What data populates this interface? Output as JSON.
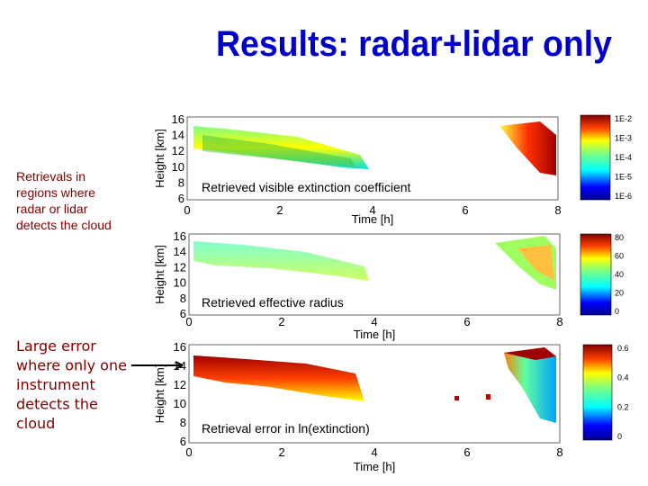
{
  "title": "Results: radar+lidar only",
  "notes": [
    {
      "lines": [
        "Retrievals in",
        "regions where",
        "radar or lidar",
        "detects the cloud"
      ]
    },
    {
      "lines": [
        "Large error",
        "where only one",
        "instrument",
        "detects the",
        "cloud"
      ]
    }
  ],
  "panels": [
    {
      "caption": "Retrieved visible extinction coefficient",
      "ylabel": "Height [km]",
      "xlabel": "Time [h]",
      "yticks": [
        "16",
        "14",
        "12",
        "10",
        "8",
        "6"
      ],
      "xticks": [
        "0",
        "2",
        "4",
        "6",
        "8"
      ],
      "colorbar_ticks": [
        "1E-2",
        "1E-3",
        "1E-4",
        "1E-5",
        "1E-6"
      ]
    },
    {
      "caption": "Retrieved effective radius",
      "ylabel": "Height [km]",
      "xlabel": "Time [h]",
      "yticks": [
        "16",
        "14",
        "12",
        "10",
        "8",
        "6"
      ],
      "xticks": [
        "0",
        "2",
        "4",
        "6",
        "8"
      ],
      "colorbar_ticks": [
        "80",
        "60",
        "40",
        "20",
        "0"
      ]
    },
    {
      "caption": "Retrieval error in ln(extinction)",
      "ylabel": "Height [km]",
      "xlabel": "Time [h]",
      "yticks": [
        "16",
        "14",
        "12",
        "10",
        "8",
        "6"
      ],
      "xticks": [
        "0",
        "2",
        "4",
        "6",
        "8"
      ],
      "colorbar_ticks": [
        "0.6",
        "0.4",
        "0.2",
        "0"
      ]
    }
  ]
}
